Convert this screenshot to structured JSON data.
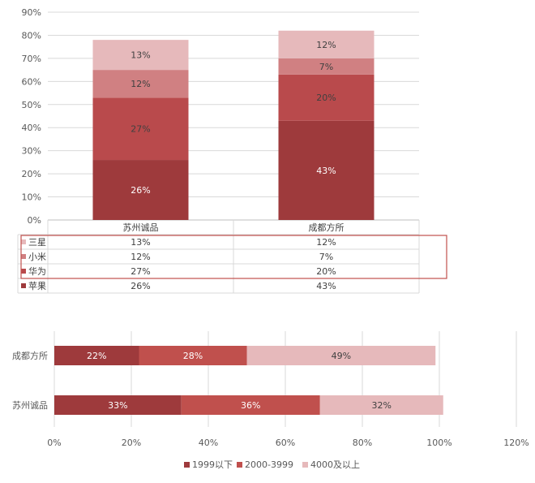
{
  "chart_data": [
    {
      "type": "bar",
      "stacked": true,
      "orientation": "vertical",
      "categories": [
        "苏州诚品",
        "成都方所"
      ],
      "series": [
        {
          "name": "苹果",
          "values": [
            26,
            43
          ],
          "labels": [
            "26%",
            "43%"
          ],
          "color": "#9e3a3c"
        },
        {
          "name": "华为",
          "values": [
            27,
            20
          ],
          "labels": [
            "27%",
            "20%"
          ],
          "color": "#b94a4c"
        },
        {
          "name": "小米",
          "values": [
            12,
            7
          ],
          "labels": [
            "12%",
            "7%"
          ],
          "color": "#d08082"
        },
        {
          "name": "三星",
          "values": [
            13,
            12
          ],
          "labels": [
            "13%",
            "12%"
          ],
          "color": "#e6b9bb"
        }
      ],
      "yticks": [
        "0%",
        "10%",
        "20%",
        "30%",
        "40%",
        "50%",
        "60%",
        "70%",
        "80%",
        "90%"
      ],
      "ylim": [
        0,
        90
      ],
      "grid": true,
      "data_table": {
        "rows": [
          "三星",
          "小米",
          "华为",
          "苹果"
        ]
      },
      "highlight_color": "#c0504d"
    },
    {
      "type": "bar",
      "stacked": true,
      "orientation": "horizontal",
      "categories": [
        "成都方所",
        "苏州诚品"
      ],
      "series": [
        {
          "name": "1999以下",
          "values": [
            22,
            33
          ],
          "labels": [
            "22%",
            "33%"
          ],
          "color": "#9e3a3c"
        },
        {
          "name": "2000-3999",
          "values": [
            28,
            36
          ],
          "labels": [
            "28%",
            "36%"
          ],
          "color": "#c0504d"
        },
        {
          "name": "4000及以上",
          "values": [
            49,
            32
          ],
          "labels": [
            "49%",
            "32%"
          ],
          "color": "#e6b9bb"
        }
      ],
      "xticks": [
        "0%",
        "20%",
        "40%",
        "60%",
        "80%",
        "100%",
        "120%"
      ],
      "xlim": [
        0,
        120
      ],
      "grid": true,
      "legend": "bottom"
    }
  ]
}
